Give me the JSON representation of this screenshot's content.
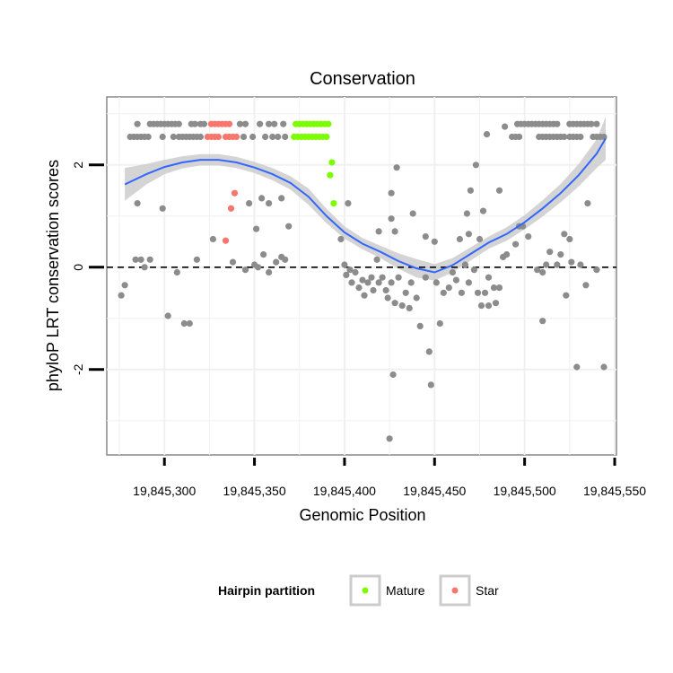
{
  "chart_data": {
    "type": "scatter",
    "title": "Conservation",
    "xlabel": "Genomic Position",
    "ylabel": "phyloP LRT conservation scores",
    "xlim": [
      19845268,
      19845551
    ],
    "ylim": [
      -3.67,
      3.33
    ],
    "x_ticks": [
      19845300,
      19845350,
      19845400,
      19845450,
      19845500,
      19845550
    ],
    "x_tick_labels": [
      "19,845,300",
      "19,845,350",
      "19,845,400",
      "19,845,450",
      "19,845,500",
      "19,845,550"
    ],
    "y_ticks": [
      -2,
      0,
      2
    ],
    "y_tick_labels": [
      "-2",
      "0",
      "2"
    ],
    "grid": true,
    "reference_line": {
      "y": 0,
      "style": "dashed",
      "color": "#000000"
    },
    "legend": {
      "title": "Hairpin partition",
      "placement": "bottom",
      "entries": [
        {
          "label": "Mature",
          "color": "#7cfc00"
        },
        {
          "label": "Star",
          "color": "#f8766d"
        }
      ]
    },
    "colors": {
      "other": "#8c8c8c",
      "Mature": "#7cfc00",
      "Star": "#f8766d",
      "smooth": "#3366ff",
      "ribbon": "#cccccc"
    },
    "series": [
      {
        "name": "Mature",
        "points": [
          [
            19845373,
            2.8
          ],
          [
            19845375,
            2.8
          ],
          [
            19845377,
            2.8
          ],
          [
            19845379,
            2.8
          ],
          [
            19845381,
            2.8
          ],
          [
            19845383,
            2.8
          ],
          [
            19845385,
            2.8
          ],
          [
            19845387,
            2.8
          ],
          [
            19845389,
            2.8
          ],
          [
            19845391,
            2.8
          ],
          [
            19845372,
            2.55
          ],
          [
            19845374,
            2.55
          ],
          [
            19845376,
            2.55
          ],
          [
            19845378,
            2.55
          ],
          [
            19845380,
            2.55
          ],
          [
            19845382,
            2.55
          ],
          [
            19845384,
            2.55
          ],
          [
            19845386,
            2.55
          ],
          [
            19845388,
            2.55
          ],
          [
            19845390,
            2.55
          ],
          [
            19845393,
            2.05
          ],
          [
            19845392,
            1.8
          ],
          [
            19845394,
            1.25
          ]
        ]
      },
      {
        "name": "Star",
        "points": [
          [
            19845326,
            2.8
          ],
          [
            19845328,
            2.8
          ],
          [
            19845330,
            2.8
          ],
          [
            19845332,
            2.8
          ],
          [
            19845334,
            2.8
          ],
          [
            19845336,
            2.8
          ],
          [
            19845324,
            2.55
          ],
          [
            19845326,
            2.55
          ],
          [
            19845328,
            2.55
          ],
          [
            19845330,
            2.55
          ],
          [
            19845334,
            2.55
          ],
          [
            19845336,
            2.55
          ],
          [
            19845338,
            2.55
          ],
          [
            19845340,
            2.55
          ],
          [
            19845339,
            1.45
          ],
          [
            19845337,
            1.15
          ],
          [
            19845334,
            0.52
          ]
        ]
      },
      {
        "name": "Other",
        "points": [
          [
            19845285,
            2.8
          ],
          [
            19845292,
            2.8
          ],
          [
            19845294,
            2.8
          ],
          [
            19845296,
            2.8
          ],
          [
            19845298,
            2.8
          ],
          [
            19845300,
            2.8
          ],
          [
            19845302,
            2.8
          ],
          [
            19845304,
            2.8
          ],
          [
            19845306,
            2.8
          ],
          [
            19845308,
            2.8
          ],
          [
            19845315,
            2.8
          ],
          [
            19845317,
            2.8
          ],
          [
            19845320,
            2.8
          ],
          [
            19845322,
            2.8
          ],
          [
            19845342,
            2.8
          ],
          [
            19845345,
            2.8
          ],
          [
            19845353,
            2.8
          ],
          [
            19845358,
            2.8
          ],
          [
            19845361,
            2.8
          ],
          [
            19845366,
            2.8
          ],
          [
            19845496,
            2.8
          ],
          [
            19845498,
            2.8
          ],
          [
            19845500,
            2.8
          ],
          [
            19845502,
            2.8
          ],
          [
            19845504,
            2.8
          ],
          [
            19845506,
            2.8
          ],
          [
            19845508,
            2.8
          ],
          [
            19845510,
            2.8
          ],
          [
            19845512,
            2.8
          ],
          [
            19845514,
            2.8
          ],
          [
            19845516,
            2.8
          ],
          [
            19845518,
            2.8
          ],
          [
            19845525,
            2.8
          ],
          [
            19845527,
            2.8
          ],
          [
            19845529,
            2.8
          ],
          [
            19845531,
            2.8
          ],
          [
            19845533,
            2.8
          ],
          [
            19845535,
            2.8
          ],
          [
            19845537,
            2.8
          ],
          [
            19845540,
            2.8
          ],
          [
            19845281,
            2.55
          ],
          [
            19845283,
            2.55
          ],
          [
            19845285,
            2.55
          ],
          [
            19845287,
            2.55
          ],
          [
            19845289,
            2.55
          ],
          [
            19845291,
            2.55
          ],
          [
            19845299,
            2.55
          ],
          [
            19845305,
            2.55
          ],
          [
            19845308,
            2.55
          ],
          [
            19845310,
            2.55
          ],
          [
            19845312,
            2.55
          ],
          [
            19845314,
            2.55
          ],
          [
            19845316,
            2.55
          ],
          [
            19845318,
            2.55
          ],
          [
            19845320,
            2.55
          ],
          [
            19845344,
            2.55
          ],
          [
            19845349,
            2.55
          ],
          [
            19845356,
            2.55
          ],
          [
            19845360,
            2.55
          ],
          [
            19845363,
            2.55
          ],
          [
            19845367,
            2.55
          ],
          [
            19845493,
            2.55
          ],
          [
            19845495,
            2.55
          ],
          [
            19845497,
            2.55
          ],
          [
            19845508,
            2.55
          ],
          [
            19845510,
            2.55
          ],
          [
            19845512,
            2.55
          ],
          [
            19845514,
            2.55
          ],
          [
            19845516,
            2.55
          ],
          [
            19845518,
            2.55
          ],
          [
            19845520,
            2.55
          ],
          [
            19845522,
            2.55
          ],
          [
            19845525,
            2.55
          ],
          [
            19845527,
            2.55
          ],
          [
            19845529,
            2.55
          ],
          [
            19845531,
            2.55
          ],
          [
            19845538,
            2.55
          ],
          [
            19845540,
            2.55
          ],
          [
            19845542,
            2.55
          ],
          [
            19845544,
            2.55
          ],
          [
            19845479,
            2.6
          ],
          [
            19845489,
            2.75
          ],
          [
            19845473,
            2.0
          ],
          [
            19845429,
            1.95
          ],
          [
            19845426,
            1.45
          ],
          [
            19845486,
            1.5
          ],
          [
            19845470,
            1.5
          ],
          [
            19845535,
            1.25
          ],
          [
            19845285,
            1.25
          ],
          [
            19845299,
            1.15
          ],
          [
            19845347,
            1.25
          ],
          [
            19845354,
            1.35
          ],
          [
            19845358,
            1.25
          ],
          [
            19845365,
            1.35
          ],
          [
            19845369,
            0.8
          ],
          [
            19845351,
            0.75
          ],
          [
            19845402,
            1.25
          ],
          [
            19845438,
            1.05
          ],
          [
            19845426,
            0.95
          ],
          [
            19845468,
            1.05
          ],
          [
            19845477,
            1.1
          ],
          [
            19845497,
            0.8
          ],
          [
            19845499,
            0.8
          ],
          [
            19845522,
            0.65
          ],
          [
            19845525,
            0.55
          ],
          [
            19845469,
            0.65
          ],
          [
            19845475,
            0.55
          ],
          [
            19845445,
            0.6
          ],
          [
            19845450,
            0.5
          ],
          [
            19845464,
            0.55
          ],
          [
            19845419,
            0.7
          ],
          [
            19845428,
            0.7
          ],
          [
            19845276,
            -0.55
          ],
          [
            19845278,
            -0.35
          ],
          [
            19845284,
            0.15
          ],
          [
            19845287,
            0.15
          ],
          [
            19845289,
            0.0
          ],
          [
            19845292,
            0.15
          ],
          [
            19845302,
            -0.95
          ],
          [
            19845307,
            -0.1
          ],
          [
            19845311,
            -1.1
          ],
          [
            19845314,
            -1.1
          ],
          [
            19845318,
            0.15
          ],
          [
            19845327,
            0.55
          ],
          [
            19845338,
            0.1
          ],
          [
            19845345,
            -0.05
          ],
          [
            19845350,
            0.05
          ],
          [
            19845352,
            0.0
          ],
          [
            19845355,
            0.25
          ],
          [
            19845358,
            -0.1
          ],
          [
            19845362,
            0.1
          ],
          [
            19845365,
            0.2
          ],
          [
            19845367,
            0.15
          ],
          [
            19845398,
            0.55
          ],
          [
            19845400,
            0.05
          ],
          [
            19845401,
            -0.15
          ],
          [
            19845403,
            -0.05
          ],
          [
            19845404,
            -0.3
          ],
          [
            19845406,
            -0.1
          ],
          [
            19845408,
            -0.4
          ],
          [
            19845410,
            -0.25
          ],
          [
            19845411,
            -0.55
          ],
          [
            19845413,
            -0.3
          ],
          [
            19845415,
            -0.2
          ],
          [
            19845416,
            -0.45
          ],
          [
            19845418,
            0.15
          ],
          [
            19845419,
            -0.3
          ],
          [
            19845421,
            -0.2
          ],
          [
            19845423,
            -0.45
          ],
          [
            19845424,
            -0.6
          ],
          [
            19845426,
            -0.3
          ],
          [
            19845428,
            -0.7
          ],
          [
            19845430,
            -0.2
          ],
          [
            19845432,
            -0.75
          ],
          [
            19845434,
            -0.5
          ],
          [
            19845436,
            -0.8
          ],
          [
            19845437,
            -0.3
          ],
          [
            19845440,
            -0.6
          ],
          [
            19845442,
            -1.15
          ],
          [
            19845445,
            -0.2
          ],
          [
            19845447,
            -1.65
          ],
          [
            19845448,
            -2.3
          ],
          [
            19845451,
            -0.3
          ],
          [
            19845453,
            -1.1
          ],
          [
            19845455,
            -0.5
          ],
          [
            19845458,
            -0.4
          ],
          [
            19845460,
            -0.1
          ],
          [
            19845462,
            -0.25
          ],
          [
            19845465,
            -0.5
          ],
          [
            19845467,
            0.05
          ],
          [
            19845469,
            -0.3
          ],
          [
            19845472,
            -0.05
          ],
          [
            19845474,
            -0.5
          ],
          [
            19845476,
            -0.75
          ],
          [
            19845478,
            -0.5
          ],
          [
            19845480,
            -0.2
          ],
          [
            19845483,
            -0.4
          ],
          [
            19845484,
            -0.7
          ],
          [
            19845486,
            -0.4
          ],
          [
            19845488,
            0.2
          ],
          [
            19845490,
            0.25
          ],
          [
            19845495,
            0.45
          ],
          [
            19845502,
            0.6
          ],
          [
            19845507,
            -0.05
          ],
          [
            19845510,
            -0.1
          ],
          [
            19845512,
            0.05
          ],
          [
            19845514,
            0.3
          ],
          [
            19845518,
            0.05
          ],
          [
            19845520,
            0.25
          ],
          [
            19845523,
            -0.55
          ],
          [
            19845526,
            0.1
          ],
          [
            19845529,
            -1.95
          ],
          [
            19845531,
            0.05
          ],
          [
            19845534,
            -0.35
          ],
          [
            19845540,
            -0.05
          ],
          [
            19845544,
            -1.95
          ],
          [
            19845427,
            -2.1
          ],
          [
            19845425,
            -3.35
          ],
          [
            19845510,
            -1.05
          ],
          [
            19845480,
            -0.75
          ]
        ]
      }
    ],
    "smooth_line": {
      "x": [
        19845278,
        19845290,
        19845300,
        19845310,
        19845320,
        19845330,
        19845340,
        19845350,
        19845360,
        19845370,
        19845380,
        19845390,
        19845400,
        19845410,
        19845420,
        19845430,
        19845440,
        19845450,
        19845460,
        19845470,
        19845480,
        19845490,
        19845500,
        19845510,
        19845520,
        19845530,
        19845540,
        19845545
      ],
      "y": [
        1.62,
        1.82,
        1.96,
        2.05,
        2.1,
        2.1,
        2.05,
        1.95,
        1.82,
        1.65,
        1.38,
        1.0,
        0.68,
        0.46,
        0.3,
        0.12,
        -0.02,
        -0.1,
        0.04,
        0.26,
        0.48,
        0.65,
        0.88,
        1.15,
        1.45,
        1.8,
        2.22,
        2.52
      ],
      "ci_lower": [
        1.3,
        1.62,
        1.82,
        1.93,
        1.99,
        1.99,
        1.94,
        1.84,
        1.7,
        1.52,
        1.22,
        0.86,
        0.56,
        0.35,
        0.18,
        -0.03,
        -0.2,
        -0.26,
        -0.1,
        0.13,
        0.36,
        0.52,
        0.74,
        0.99,
        1.27,
        1.58,
        1.94,
        2.1
      ],
      "ci_upper": [
        1.94,
        2.02,
        2.1,
        2.17,
        2.21,
        2.21,
        2.16,
        2.06,
        1.94,
        1.78,
        1.54,
        1.14,
        0.8,
        0.57,
        0.42,
        0.27,
        0.16,
        0.06,
        0.18,
        0.39,
        0.6,
        0.78,
        1.02,
        1.31,
        1.63,
        2.02,
        2.5,
        2.94
      ]
    }
  }
}
